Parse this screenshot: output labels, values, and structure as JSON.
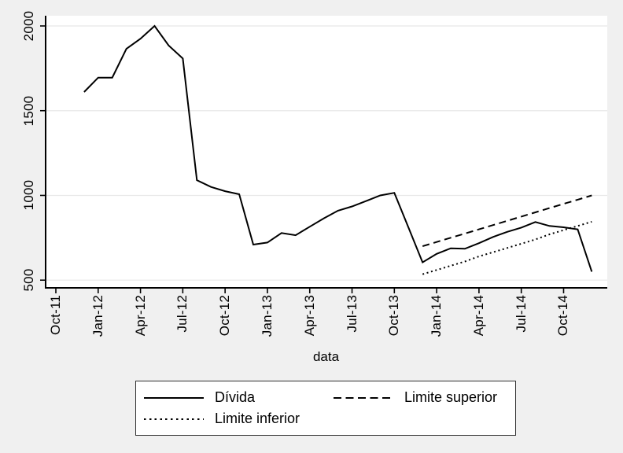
{
  "colors": {
    "outer_background": "#f0f0f0",
    "plot_background": "#ffffff",
    "gridline": "#e8e8e8",
    "axis": "#000000",
    "line": "#000000"
  },
  "chart_data": {
    "type": "line",
    "title": "",
    "xlabel": "data",
    "ylabel": "",
    "grid": "horizontal",
    "legend_position": "bottom",
    "y_ticks": [
      500,
      1000,
      1500,
      2000
    ],
    "ylim": [
      450,
      2060
    ],
    "x_ticks": [
      "Oct-11",
      "Jan-12",
      "Apr-12",
      "Jul-12",
      "Oct-12",
      "Jan-13",
      "Apr-13",
      "Jul-13",
      "Oct-13",
      "Jan-14",
      "Apr-14",
      "Jul-14",
      "Oct-14"
    ],
    "x_tick_month_indices": [
      0,
      3,
      6,
      9,
      12,
      15,
      18,
      21,
      24,
      27,
      30,
      33,
      36
    ],
    "months": [
      "Oct-11",
      "Nov-11",
      "Dec-11",
      "Jan-12",
      "Feb-12",
      "Mar-12",
      "Apr-12",
      "May-12",
      "Jun-12",
      "Jul-12",
      "Aug-12",
      "Sep-12",
      "Oct-12",
      "Nov-12",
      "Dec-12",
      "Jan-13",
      "Feb-13",
      "Mar-13",
      "Apr-13",
      "May-13",
      "Jun-13",
      "Jul-13",
      "Aug-13",
      "Sep-13",
      "Oct-13",
      "Nov-13",
      "Dec-13",
      "Jan-14",
      "Feb-14",
      "Mar-14",
      "Apr-14",
      "May-14",
      "Jun-14",
      "Jul-14",
      "Aug-14",
      "Sep-14",
      "Oct-14",
      "Nov-14",
      "Dec-14"
    ],
    "series": [
      {
        "name": "Dívida",
        "style": "solid",
        "start_index": 2,
        "values": [
          1610,
          1695,
          1695,
          1865,
          1925,
          2000,
          1885,
          1808,
          1090,
          1050,
          1025,
          1007,
          710,
          722,
          778,
          765,
          815,
          865,
          910,
          935,
          967,
          1000,
          1015,
          810,
          605,
          655,
          688,
          685,
          718,
          755,
          785,
          810,
          843,
          820,
          812,
          800,
          550
        ]
      },
      {
        "name": "Limite superior",
        "style": "dashed",
        "start_index": 26,
        "values": [
          700,
          725,
          750,
          775,
          800,
          825,
          850,
          875,
          900,
          925,
          950,
          975,
          1000
        ]
      },
      {
        "name": "Limite inferior",
        "style": "dotted",
        "start_index": 26,
        "values": [
          535,
          560,
          585,
          610,
          640,
          665,
          690,
          715,
          740,
          770,
          795,
          820,
          845
        ]
      }
    ]
  }
}
